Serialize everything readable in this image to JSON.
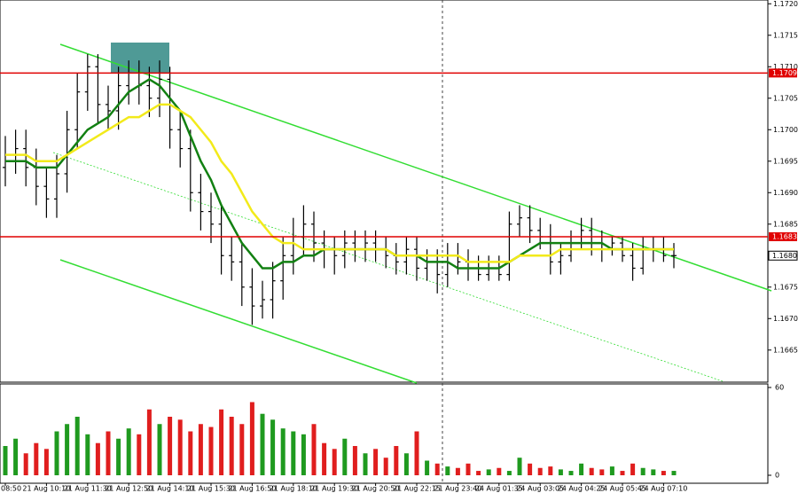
{
  "chart_data": {
    "type": "candlestick",
    "categories": [
      "08:50",
      null,
      null,
      null,
      "21 Aug 10:10",
      null,
      null,
      null,
      "21 Aug 11:30",
      null,
      null,
      null,
      "21 Aug 12:50",
      null,
      null,
      null,
      "21 Aug 14:10",
      null,
      null,
      null,
      "21 Aug 15:30",
      null,
      null,
      null,
      "21 Aug 16:50",
      null,
      null,
      null,
      "21 Aug 18:10",
      null,
      null,
      null,
      "21 Aug 19:30",
      null,
      null,
      null,
      "21 Aug 20:50",
      null,
      null,
      null,
      "21 Aug 22:15",
      null,
      null,
      null,
      "21 Aug 23:40",
      null,
      null,
      null,
      "24 Aug 01:35",
      null,
      null,
      null,
      "24 Aug 03:05",
      null,
      null,
      null,
      "24 Aug 04:25",
      null,
      null,
      null,
      "24 Aug 05:45",
      null,
      null,
      null,
      "24 Aug 07:10",
      null
    ],
    "open": [
      1.1694,
      1.1696,
      1.1697,
      1.1694,
      1.1691,
      1.1689,
      1.1693,
      1.17,
      1.1706,
      1.171,
      1.1704,
      1.1703,
      1.1707,
      1.1709,
      1.1707,
      1.1705,
      1.1708,
      1.17,
      1.1697,
      1.169,
      1.1687,
      1.1685,
      1.168,
      1.1679,
      1.1675,
      1.1672,
      1.1673,
      1.1676,
      1.168,
      1.1683,
      1.1685,
      1.1682,
      1.1681,
      1.168,
      1.1682,
      1.1681,
      1.1682,
      1.1681,
      1.168,
      1.1679,
      1.1681,
      1.1678,
      1.1679,
      1.1677,
      1.168,
      1.1679,
      1.1678,
      1.1677,
      1.1678,
      1.1677,
      1.1685,
      1.1686,
      1.1684,
      1.1683,
      1.1679,
      1.168,
      1.1682,
      1.1684,
      1.1682,
      1.1681,
      1.1682,
      1.168,
      1.1678,
      1.1681,
      1.1681,
      1.168
    ],
    "high": [
      1.1699,
      1.17,
      1.17,
      1.1697,
      1.1694,
      1.1696,
      1.1703,
      1.1709,
      1.1712,
      1.1712,
      1.1707,
      1.171,
      1.1711,
      1.1711,
      1.171,
      1.1711,
      1.171,
      1.1703,
      1.17,
      1.1693,
      1.169,
      1.1688,
      1.1683,
      1.1682,
      1.1678,
      1.1676,
      1.1679,
      1.1683,
      1.1686,
      1.1688,
      1.1687,
      1.1684,
      1.1683,
      1.1684,
      1.1684,
      1.1684,
      1.1684,
      1.1683,
      1.1682,
      1.1683,
      1.1683,
      1.1681,
      1.1681,
      1.1682,
      1.1682,
      1.1681,
      1.168,
      1.168,
      1.168,
      1.1687,
      1.1688,
      1.1688,
      1.1686,
      1.1685,
      1.1682,
      1.1684,
      1.1686,
      1.1686,
      1.1684,
      1.1683,
      1.1683,
      1.1682,
      1.1683,
      1.1683,
      1.1683,
      1.1682
    ],
    "low": [
      1.1691,
      1.1693,
      1.1691,
      1.1688,
      1.1686,
      1.1686,
      1.169,
      1.1697,
      1.1703,
      1.1701,
      1.17,
      1.17,
      1.1704,
      1.1704,
      1.1702,
      1.1702,
      1.1697,
      1.1694,
      1.1687,
      1.1684,
      1.1682,
      1.1677,
      1.1676,
      1.1672,
      1.1669,
      1.167,
      1.167,
      1.1673,
      1.1677,
      1.168,
      1.1679,
      1.1678,
      1.1677,
      1.1678,
      1.1679,
      1.1679,
      1.1679,
      1.1678,
      1.1677,
      1.1677,
      1.1676,
      1.1676,
      1.1674,
      1.1675,
      1.1677,
      1.1676,
      1.1676,
      1.1676,
      1.1676,
      1.1676,
      1.1683,
      1.1682,
      1.1681,
      1.1677,
      1.1677,
      1.1679,
      1.1681,
      1.168,
      1.1679,
      1.168,
      1.1679,
      1.1676,
      1.1677,
      1.1679,
      1.1679,
      1.1678
    ],
    "close": [
      1.1696,
      1.1697,
      1.1694,
      1.1691,
      1.1689,
      1.1693,
      1.17,
      1.1706,
      1.171,
      1.1704,
      1.1703,
      1.1707,
      1.1709,
      1.1707,
      1.1705,
      1.1708,
      1.17,
      1.1697,
      1.169,
      1.1687,
      1.1685,
      1.168,
      1.1679,
      1.1675,
      1.1672,
      1.1673,
      1.1676,
      1.168,
      1.1683,
      1.1685,
      1.1682,
      1.1681,
      1.168,
      1.1682,
      1.1681,
      1.1682,
      1.1681,
      1.168,
      1.1679,
      1.1681,
      1.1678,
      1.1679,
      1.1677,
      1.168,
      1.1679,
      1.1678,
      1.1677,
      1.1678,
      1.1677,
      1.1685,
      1.1686,
      1.1684,
      1.1683,
      1.1679,
      1.168,
      1.1682,
      1.1684,
      1.1682,
      1.1681,
      1.1682,
      1.168,
      1.1678,
      1.1681,
      1.1681,
      1.168,
      1.168
    ],
    "color": "#000000",
    "series": [
      {
        "color": "#128012",
        "values": [
          1.1695,
          1.1695,
          1.1695,
          1.1694,
          1.1694,
          1.1694,
          1.1696,
          1.1698,
          1.17,
          1.1701,
          1.1702,
          1.1704,
          1.1706,
          1.1707,
          1.1708,
          1.1707,
          1.1705,
          1.1703,
          1.1699,
          1.1695,
          1.1692,
          1.1688,
          1.1685,
          1.1682,
          1.168,
          1.1678,
          1.1678,
          1.1679,
          1.1679,
          1.168,
          1.168,
          1.1681,
          1.1681,
          1.1681,
          1.1681,
          1.1681,
          1.1681,
          1.1681,
          1.168,
          1.168,
          1.168,
          1.1679,
          1.1679,
          1.1679,
          1.1678,
          1.1678,
          1.1678,
          1.1678,
          1.1678,
          1.1679,
          1.168,
          1.1681,
          1.1682,
          1.1682,
          1.1682,
          1.1682,
          1.1682,
          1.1682,
          1.1682,
          1.1681,
          1.1681,
          1.1681,
          1.1681,
          1.1681,
          1.1681,
          1.1681
        ]
      },
      {
        "color": "#f2ea1a",
        "values": [
          1.1696,
          1.1696,
          1.1696,
          1.1695,
          1.1695,
          1.1695,
          1.1696,
          1.1697,
          1.1698,
          1.1699,
          1.17,
          1.1701,
          1.1702,
          1.1702,
          1.1703,
          1.1704,
          1.1704,
          1.1703,
          1.1702,
          1.17,
          1.1698,
          1.1695,
          1.1693,
          1.169,
          1.1687,
          1.1685,
          1.1683,
          1.1682,
          1.1682,
          1.1681,
          1.1681,
          1.1681,
          1.1681,
          1.1681,
          1.1681,
          1.1681,
          1.1681,
          1.1681,
          1.168,
          1.168,
          1.168,
          1.168,
          1.168,
          1.168,
          1.168,
          1.1679,
          1.1679,
          1.1679,
          1.1679,
          1.1679,
          1.168,
          1.168,
          1.168,
          1.168,
          1.1681,
          1.1681,
          1.1681,
          1.1681,
          1.1681,
          1.1681,
          1.1681,
          1.1681,
          1.1681,
          1.1681,
          1.1681,
          1.1681
        ]
      }
    ],
    "ylim": [
      1.16599,
      1.17206
    ],
    "yticks": [
      {
        "value": 1.172,
        "label": "1.1720"
      },
      1.1715,
      {
        "value": 1.171,
        "label": "1.1710"
      },
      1.1705,
      {
        "value": 1.17,
        "label": "1.1700"
      },
      1.1695,
      {
        "value": 1.169,
        "label": "1.1690"
      },
      1.1685,
      {
        "value": 1.168,
        "label": "1.1680"
      },
      1.1675,
      {
        "value": 1.167,
        "label": "1.1670"
      },
      1.1665
    ],
    "levels": [
      {
        "value": 1.1709,
        "label": "1.1709"
      },
      {
        "value": 1.1683,
        "label": "1.1683"
      }
    ],
    "level_color": "#e00000",
    "last_price": {
      "value": 1.168,
      "label": "1.1680"
    },
    "volume": {
      "type": "bar",
      "values": [
        20,
        25,
        15,
        22,
        18,
        30,
        35,
        40,
        28,
        22,
        30,
        25,
        32,
        28,
        45,
        35,
        40,
        38,
        30,
        35,
        33,
        45,
        40,
        35,
        50,
        42,
        38,
        32,
        30,
        28,
        35,
        22,
        18,
        25,
        20,
        15,
        18,
        12,
        20,
        15,
        30,
        10,
        8,
        6,
        5,
        8,
        3,
        4,
        5,
        3,
        12,
        8,
        5,
        6,
        4,
        3,
        8,
        5,
        4,
        6,
        3,
        8,
        5,
        4,
        3,
        3
      ],
      "up_color": "#1f9a1f",
      "down_color": "#e01e1e",
      "ylim": [
        0,
        60
      ],
      "yticks": [
        0,
        60
      ]
    }
  }
}
